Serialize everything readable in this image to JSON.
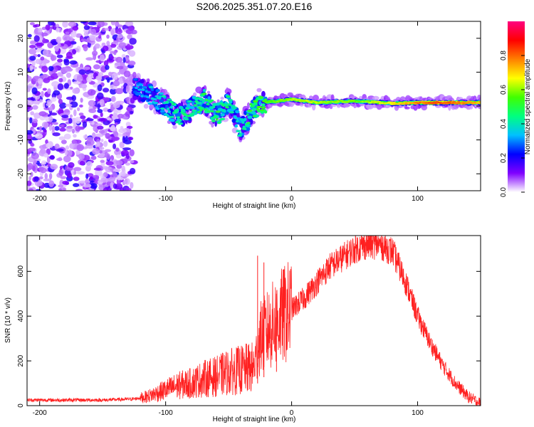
{
  "figure_title": "S206.2025.351.07.20.E16",
  "chart_data": [
    {
      "type": "heatmap",
      "name": "spectrogram",
      "xlabel": "Height of straight line (km)",
      "ylabel": "Frequency (Hz)",
      "xlim": [
        -210,
        150
      ],
      "ylim": [
        -25,
        25
      ],
      "xticks": [
        -200,
        -100,
        0,
        100
      ],
      "yticks": [
        -20,
        -10,
        0,
        10,
        20
      ],
      "colorbar": {
        "label": "Normalized spectral amplitude",
        "range": [
          0.0,
          1.0
        ],
        "ticks": [
          0.0,
          0.2,
          0.4,
          0.6,
          0.8
        ],
        "tick_labels": [
          "0.0",
          "0.2",
          "0.4",
          "0.6",
          "0.8"
        ],
        "colormap": [
          "#ffffff",
          "#8000ff",
          "#0000ff",
          "#00c0ff",
          "#00ff80",
          "#40ff00",
          "#ffff00",
          "#ff8000",
          "#ff0000",
          "#ff0080"
        ]
      },
      "noise_region": {
        "x_range": [
          -210,
          -125
        ],
        "freq_range": [
          -25,
          25
        ],
        "amplitude": 0.15
      },
      "ridge": [
        {
          "x": -125,
          "freq": 5.5,
          "amp": 0.25
        },
        {
          "x": -110,
          "freq": 3.0,
          "amp": 0.3
        },
        {
          "x": -100,
          "freq": 0.0,
          "amp": 0.35
        },
        {
          "x": -90,
          "freq": -3.0,
          "amp": 0.4
        },
        {
          "x": -80,
          "freq": -1.0,
          "amp": 0.4
        },
        {
          "x": -70,
          "freq": 2.0,
          "amp": 0.45
        },
        {
          "x": -60,
          "freq": -3.0,
          "amp": 0.45
        },
        {
          "x": -50,
          "freq": 1.0,
          "amp": 0.4
        },
        {
          "x": -40,
          "freq": -7.0,
          "amp": 0.35
        },
        {
          "x": -32,
          "freq": -2.0,
          "amp": 0.45
        },
        {
          "x": -25,
          "freq": 1.0,
          "amp": 0.5
        },
        {
          "x": -10,
          "freq": 1.5,
          "amp": 0.55
        },
        {
          "x": 0,
          "freq": 2.0,
          "amp": 0.6
        },
        {
          "x": 20,
          "freq": 1.0,
          "amp": 0.6
        },
        {
          "x": 50,
          "freq": 1.5,
          "amp": 0.55
        },
        {
          "x": 80,
          "freq": 0.8,
          "amp": 0.65
        },
        {
          "x": 100,
          "freq": 1.0,
          "amp": 0.75
        },
        {
          "x": 120,
          "freq": 1.0,
          "amp": 0.8
        },
        {
          "x": 150,
          "freq": 1.0,
          "amp": 0.7
        }
      ]
    },
    {
      "type": "line",
      "name": "snr",
      "xlabel": "Height of straight line (km)",
      "ylabel": "SNR (10 * v/v)",
      "xlim": [
        -210,
        150
      ],
      "ylim": [
        0,
        760
      ],
      "xticks": [
        -200,
        -100,
        0,
        100
      ],
      "yticks": [
        0,
        200,
        400,
        600
      ],
      "color": "#ff2020",
      "series": [
        {
          "name": "SNR",
          "x": [
            -210,
            -180,
            -150,
            -125,
            -115,
            -100,
            -90,
            -80,
            -70,
            -60,
            -50,
            -40,
            -30,
            -25,
            -20,
            -10,
            0,
            10,
            20,
            30,
            40,
            50,
            60,
            70,
            80,
            90,
            100,
            110,
            120,
            130,
            140,
            150
          ],
          "y": [
            25,
            25,
            25,
            30,
            40,
            70,
            90,
            100,
            120,
            130,
            150,
            160,
            170,
            300,
            330,
            390,
            430,
            480,
            550,
            620,
            660,
            700,
            720,
            720,
            690,
            560,
            400,
            280,
            180,
            100,
            40,
            10
          ]
        }
      ],
      "spikes": [
        {
          "x": -40,
          "y": 240
        },
        {
          "x": -27,
          "y": 670
        },
        {
          "x": -22,
          "y": 640
        },
        {
          "x": -12,
          "y": 500
        }
      ]
    }
  ]
}
